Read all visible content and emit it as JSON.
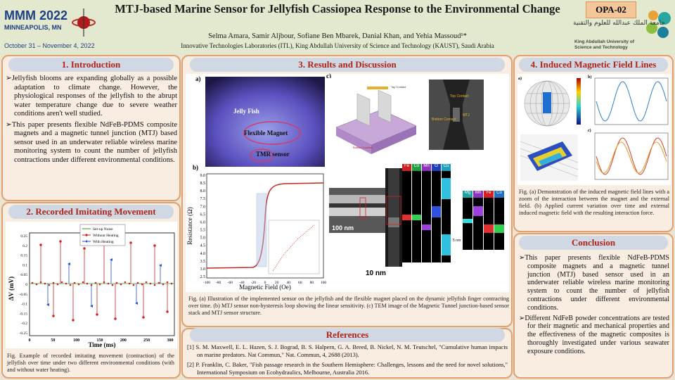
{
  "header": {
    "conference_name": "MMM 2022",
    "conference_location": "MINNEAPOLIS, MN",
    "conference_dates": "October 31 – November 4, 2022",
    "title": "MTJ-based Marine Sensor for Jellyfish Cassiopea Response to the Environmental Change",
    "authors": "Selma Amara, Samir Aljbour, Sofiane Ben Mbarek, Danial Khan, and Yehia Massoud¹*",
    "affiliation": "Innovative Technologies Laboratories (ITL), King Abdullah University of Science and Technology (KAUST), Saudi Arabia",
    "poster_id": "OPA-02",
    "kaust_arabic": "جامعة الملك عبدالله للعلوم والتقنية",
    "kaust_english_1": "King Abdullah University of",
    "kaust_english_2": "Science and Technology"
  },
  "intro": {
    "heading": "1. Introduction",
    "bullets": [
      "Jellyfish blooms are expanding globally as a possible adaptation to climate change. However, the physiological responses of the jellyfish to the abrupt water temperature change due to severe weather conditions aren't well studied.",
      "This paper presents flexible NdFeB-PDMS composite magnets and a magnetic tunnel junction (MTJ) based sensor used in an underwater reliable wireless marine monitoring system to count the number of jellyfish contractions under different environmental conditions."
    ]
  },
  "recorded": {
    "heading": "2. Recorded Imitating Movement",
    "legend": [
      "Set-up Noise",
      "Without Heating",
      "With Heating"
    ],
    "ylabel": "ΔV (mV)",
    "xlabel": "Time (ms)",
    "yticks": [
      "0.25",
      "0.2",
      "0.15",
      "0.1",
      "0.05",
      "0",
      "-0.05",
      "-0.1",
      "-0.15",
      "-0.2",
      "-0.25"
    ],
    "xticks": [
      "0",
      "50",
      "100",
      "150",
      "200",
      "250",
      "300"
    ],
    "caption": "Fig. Example of recorded imitating movement (contraction) of the jellyfish over time under two different environmental conditions (with and without water heating)."
  },
  "results": {
    "heading": "3. Results and Discussion",
    "panel_a": "a)",
    "panel_b": "b)",
    "panel_c": "c)",
    "photo_labels": [
      "Jelly Fish",
      "Flexible Magnet",
      "TMR sensor"
    ],
    "rh_ylabel": "Resistance (Ω)",
    "rh_xlabel": "Magnetic Field (Oe)",
    "rh_yticks": [
      "9.0",
      "8.5",
      "8.0",
      "7.5",
      "7.0",
      "6.5",
      "6.0",
      "5.5",
      "5.0",
      "4.5",
      "4.0",
      "3.5",
      "3.0",
      "2.5"
    ],
    "rh_xticks": [
      "-100",
      "-80",
      "-60",
      "-40",
      "-20",
      "0",
      "20",
      "40",
      "60",
      "80",
      "100"
    ],
    "device_labels": [
      "Top Contact",
      "Top Contact",
      "Bottom Contact",
      "MTJ",
      "Bottom Contact"
    ],
    "eds_labels_top": [
      "Fe",
      "Co",
      "Mn",
      "O",
      "Cu"
    ],
    "eds_labels_right": [
      "Mg",
      "Mn",
      "Fe",
      "Co"
    ],
    "scale_100nm": "100 nm",
    "scale_10nm": "10 nm",
    "scale_5nm": "5 nm",
    "caption": "Fig. (a) Illustration of the implemented sensor on the jellyfish and the flexible magnet placed on the dynamic jellyfish finger contracting over time. (b) MTJ sensor non-hysteresis loop showing the linear sensitivity. (c) TEM image of the Magnetic Tunnel junction-based sensor stack and MTJ sensor structure."
  },
  "references": {
    "heading": "References",
    "items": [
      "[1] S. M. Maxwell, E. L. Hazen, S. J. Bograd, B. S. Halpern, G. A. Breed, B. Nickel, N. M. Teutschel, \"Cumulative human impacts on marine predators. Nat Commun,\" Nat. Commun, 4, 2688 (2013).",
      "[2] P. Franklin, C. Baker, \"Fish passage research in the Southern Hemisphere: Challenges, lessons and the need for novel solutions,\" International Symposium on Ecohydraulics, Melbourne, Australia 2016."
    ]
  },
  "induced": {
    "heading": "4. Induced Magnetic Field Lines",
    "panel_a": "a)",
    "panel_b": "b)",
    "panel_c": "c)",
    "caption": "Fig. (a) Demonstration of the induced magnetic field lines with a zoom of the interaction between the magnet and the external field. (b) Applied current variation over time and external induced magnetic field with the resulting interaction force."
  },
  "conclusion": {
    "heading": "Conclusion",
    "bullets": [
      "This paper presents flexible NdFeB-PDMS composite magnets and a magnetic tunnel junction (MTJ) based sensor used in an underwater reliable wireless marine monitoring system to count the number of jellyfish contractions under different environmental conditions.",
      "Different NdFeB powder concentrations are tested for their magnetic and mechanical properties and the effectiveness of the magnetic composites is thoroughly investigated under various seawater exposure conditions."
    ]
  },
  "colors": {
    "section_title": "#b02418",
    "panel_border": "#e0a070",
    "panel_bg": "#f9ede2",
    "head_bg": "#cfd8e3"
  }
}
